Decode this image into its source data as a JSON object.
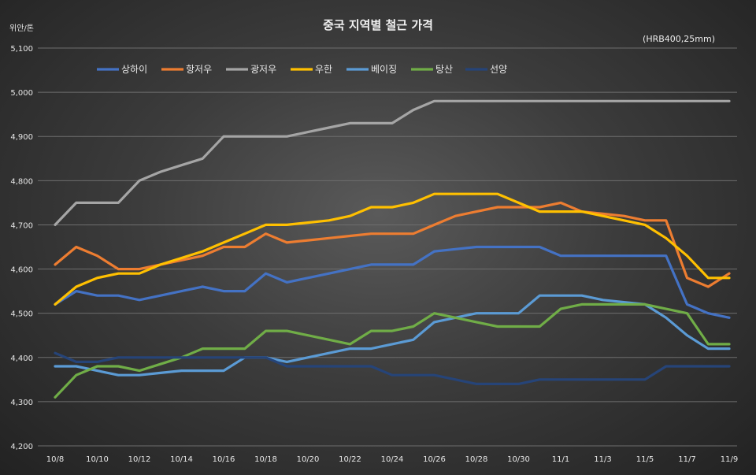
{
  "chart_data": {
    "type": "line",
    "title": "중국 지역별 철근 가격",
    "ylabel": "위안/톤",
    "note": "(HRB400,25mm)",
    "ylim": [
      4200,
      5100
    ],
    "yticks": [
      4200,
      4300,
      4400,
      4500,
      4600,
      4700,
      4800,
      4900,
      5000,
      5100
    ],
    "ytick_labels": [
      "4,200",
      "4,300",
      "4,400",
      "4,500",
      "4,600",
      "4,700",
      "4,800",
      "4,900",
      "5,000",
      "5,100"
    ],
    "x": [
      "10/8",
      "10/9",
      "10/10",
      "10/11",
      "10/12",
      "10/13",
      "10/14",
      "10/15",
      "10/16",
      "10/17",
      "10/18",
      "10/19",
      "10/20",
      "10/21",
      "10/22",
      "10/23",
      "10/24",
      "10/25",
      "10/26",
      "10/27",
      "10/28",
      "10/29",
      "10/30",
      "10/31",
      "11/1",
      "11/2",
      "11/3",
      "11/4",
      "11/5",
      "11/6",
      "11/7",
      "11/8",
      "11/9"
    ],
    "x_tick_labels": [
      "10/8",
      "10/10",
      "10/12",
      "10/14",
      "10/16",
      "10/18",
      "10/20",
      "10/22",
      "10/24",
      "10/26",
      "10/28",
      "10/30",
      "11/1",
      "11/3",
      "11/5",
      "11/7",
      "11/9"
    ],
    "legend_position": "top",
    "grid": true,
    "series": [
      {
        "name": "상하이",
        "color": "#4472c4",
        "values": [
          4520,
          4550,
          4540,
          4540,
          4530,
          4540,
          4550,
          4560,
          4550,
          4550,
          4590,
          4570,
          4580,
          4590,
          4600,
          4610,
          4610,
          4610,
          4640,
          4645,
          4650,
          4650,
          4650,
          4650,
          4630,
          4630,
          4630,
          4630,
          4630,
          4630,
          4520,
          4500,
          4490
        ]
      },
      {
        "name": "항저우",
        "color": "#ed7d31",
        "values": [
          4610,
          4650,
          4630,
          4600,
          4600,
          4610,
          4620,
          4630,
          4650,
          4650,
          4680,
          4660,
          4665,
          4670,
          4675,
          4680,
          4680,
          4680,
          4700,
          4720,
          4730,
          4740,
          4740,
          4740,
          4750,
          4730,
          4725,
          4720,
          4710,
          4710,
          4580,
          4560,
          4590
        ]
      },
      {
        "name": "광저우",
        "color": "#a5a5a5",
        "values": [
          4700,
          4750,
          4750,
          4750,
          4800,
          4820,
          4835,
          4850,
          4900,
          4900,
          4900,
          4900,
          4910,
          4920,
          4930,
          4930,
          4930,
          4960,
          4980,
          4980,
          4980,
          4980,
          4980,
          4980,
          4980,
          4980,
          4980,
          4980,
          4980,
          4980,
          4980,
          4980,
          4980
        ]
      },
      {
        "name": "우한",
        "color": "#ffc000",
        "values": [
          4520,
          4560,
          4580,
          4590,
          4590,
          4610,
          4625,
          4640,
          4660,
          4680,
          4700,
          4700,
          4705,
          4710,
          4720,
          4740,
          4740,
          4750,
          4770,
          4770,
          4770,
          4770,
          4750,
          4730,
          4730,
          4730,
          4720,
          4710,
          4700,
          4670,
          4630,
          4580,
          4580
        ]
      },
      {
        "name": "베이징",
        "color": "#5b9bd5",
        "values": [
          4380,
          4380,
          4370,
          4360,
          4360,
          4365,
          4370,
          4370,
          4370,
          4400,
          4400,
          4390,
          4400,
          4410,
          4420,
          4420,
          4430,
          4440,
          4480,
          4490,
          4500,
          4500,
          4500,
          4540,
          4540,
          4540,
          4530,
          4525,
          4520,
          4490,
          4450,
          4420,
          4420
        ]
      },
      {
        "name": "탕산",
        "color": "#70ad47",
        "values": [
          4310,
          4360,
          4380,
          4380,
          4370,
          4385,
          4400,
          4420,
          4420,
          4420,
          4460,
          4460,
          4450,
          4440,
          4430,
          4460,
          4460,
          4470,
          4500,
          4490,
          4480,
          4470,
          4470,
          4470,
          4510,
          4520,
          4520,
          4520,
          4520,
          4510,
          4500,
          4430,
          4430
        ]
      },
      {
        "name": "선양",
        "color": "#264478",
        "values": [
          4410,
          4390,
          4390,
          4400,
          4400,
          4400,
          4400,
          4400,
          4400,
          4400,
          4400,
          4380,
          4380,
          4380,
          4380,
          4380,
          4360,
          4360,
          4360,
          4350,
          4340,
          4340,
          4340,
          4350,
          4350,
          4350,
          4350,
          4350,
          4350,
          4380,
          4380,
          4380,
          4380
        ]
      }
    ]
  }
}
